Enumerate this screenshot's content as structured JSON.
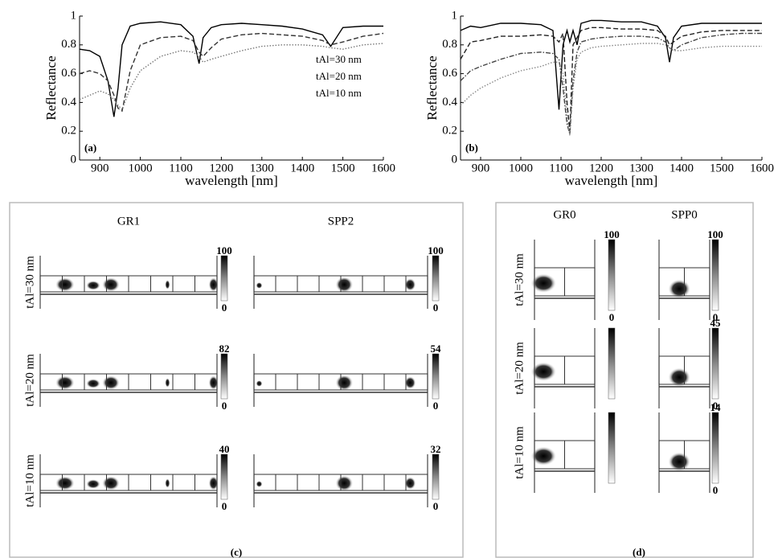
{
  "chart_data": [
    {
      "type": "line",
      "annotation": "(a)",
      "x_label": "wavelength [nm]",
      "y_label": "Reflectance",
      "x": [
        850,
        875,
        900,
        920,
        935,
        945,
        955,
        975,
        1000,
        1050,
        1100,
        1130,
        1145,
        1155,
        1175,
        1200,
        1250,
        1300,
        1350,
        1400,
        1450,
        1470,
        1500,
        1550,
        1600
      ],
      "series": [
        {
          "name": "tAl=30 nm",
          "color": "#000000",
          "dash": "solid",
          "values": [
            0.77,
            0.76,
            0.72,
            0.55,
            0.3,
            0.5,
            0.8,
            0.93,
            0.95,
            0.96,
            0.94,
            0.86,
            0.67,
            0.85,
            0.92,
            0.94,
            0.95,
            0.94,
            0.93,
            0.91,
            0.87,
            0.79,
            0.92,
            0.93,
            0.93
          ]
        },
        {
          "name": "tAl=20 nm",
          "color": "#333333",
          "dash": "dashed",
          "values": [
            0.6,
            0.62,
            0.6,
            0.55,
            0.45,
            0.36,
            0.34,
            0.62,
            0.8,
            0.85,
            0.86,
            0.83,
            0.75,
            0.72,
            0.78,
            0.84,
            0.87,
            0.88,
            0.87,
            0.86,
            0.83,
            0.8,
            0.82,
            0.86,
            0.88
          ]
        },
        {
          "name": "tAl=10 nm",
          "color": "#777777",
          "dash": "dotted",
          "values": [
            0.42,
            0.45,
            0.48,
            0.46,
            0.42,
            0.38,
            0.35,
            0.5,
            0.62,
            0.72,
            0.76,
            0.75,
            0.72,
            0.68,
            0.7,
            0.72,
            0.76,
            0.79,
            0.8,
            0.8,
            0.79,
            0.78,
            0.77,
            0.8,
            0.81
          ]
        }
      ],
      "xlim": [
        850,
        1600
      ],
      "xticks": [
        900,
        1000,
        1100,
        1200,
        1300,
        1400,
        1500,
        1600
      ],
      "ylim": [
        0,
        1
      ],
      "yticks": [
        0,
        0.2,
        0.4,
        0.6,
        0.8,
        1
      ]
    },
    {
      "type": "line",
      "annotation": "(b)",
      "x_label": "wavelength [nm]",
      "y_label": "Reflectance",
      "x": [
        850,
        875,
        900,
        950,
        1000,
        1050,
        1080,
        1095,
        1105,
        1115,
        1122,
        1130,
        1140,
        1150,
        1175,
        1200,
        1250,
        1300,
        1340,
        1360,
        1370,
        1380,
        1400,
        1450,
        1500,
        1550,
        1600
      ],
      "series": [
        {
          "color": "#000000",
          "dash": "solid",
          "values": [
            0.9,
            0.93,
            0.92,
            0.95,
            0.95,
            0.94,
            0.9,
            0.35,
            0.8,
            0.9,
            0.82,
            0.9,
            0.8,
            0.95,
            0.97,
            0.97,
            0.96,
            0.96,
            0.93,
            0.85,
            0.68,
            0.85,
            0.93,
            0.95,
            0.95,
            0.95,
            0.95
          ]
        },
        {
          "color": "#222222",
          "dash": "dashed",
          "values": [
            0.7,
            0.82,
            0.83,
            0.86,
            0.86,
            0.87,
            0.86,
            0.82,
            0.88,
            0.4,
            0.2,
            0.8,
            0.85,
            0.9,
            0.92,
            0.92,
            0.91,
            0.91,
            0.9,
            0.86,
            0.8,
            0.82,
            0.86,
            0.89,
            0.9,
            0.9,
            0.9
          ]
        },
        {
          "color": "#444444",
          "dash": "dashdot",
          "values": [
            0.55,
            0.62,
            0.65,
            0.7,
            0.74,
            0.75,
            0.74,
            0.7,
            0.5,
            0.25,
            0.18,
            0.55,
            0.75,
            0.82,
            0.84,
            0.85,
            0.86,
            0.86,
            0.85,
            0.82,
            0.78,
            0.76,
            0.8,
            0.85,
            0.87,
            0.88,
            0.88
          ]
        },
        {
          "color": "#888888",
          "dash": "dotted",
          "values": [
            0.38,
            0.45,
            0.5,
            0.57,
            0.62,
            0.65,
            0.68,
            0.68,
            0.6,
            0.3,
            0.17,
            0.5,
            0.7,
            0.75,
            0.78,
            0.79,
            0.8,
            0.81,
            0.81,
            0.8,
            0.78,
            0.76,
            0.76,
            0.78,
            0.79,
            0.79,
            0.79
          ]
        }
      ],
      "xlim": [
        850,
        1600
      ],
      "xticks": [
        900,
        1000,
        1100,
        1200,
        1300,
        1400,
        1500,
        1600
      ],
      "ylim": [
        0,
        1
      ],
      "yticks": [
        0,
        0.2,
        0.4,
        0.6,
        0.8,
        1
      ]
    }
  ],
  "panels": {
    "c": {
      "label": "(c)",
      "columns": [
        "GR1",
        "SPP2"
      ],
      "rows": [
        "tAl=30 nm",
        "tAl=20 nm",
        "tAl=10 nm"
      ],
      "scales": [
        [
          {
            "max": "100",
            "min": "0"
          },
          {
            "max": "100",
            "min": "0"
          }
        ],
        [
          {
            "max": "82",
            "min": "0"
          },
          {
            "max": "54",
            "min": "0"
          }
        ],
        [
          {
            "max": "40",
            "min": "0"
          },
          {
            "max": "32",
            "min": "0"
          }
        ]
      ]
    },
    "d": {
      "label": "(d)",
      "columns": [
        "GR0",
        "SPP0"
      ],
      "rows": [
        "tAl=30 nm",
        "tAl=20 nm",
        "tAl=10 nm"
      ],
      "scales": [
        [
          {
            "max": "100",
            "min": "0"
          },
          {
            "max": "100",
            "min": "0"
          }
        ],
        [
          {},
          {
            "max": "45",
            "min": "0"
          }
        ],
        [
          {},
          {
            "max": "14",
            "min": "0"
          }
        ]
      ]
    }
  }
}
